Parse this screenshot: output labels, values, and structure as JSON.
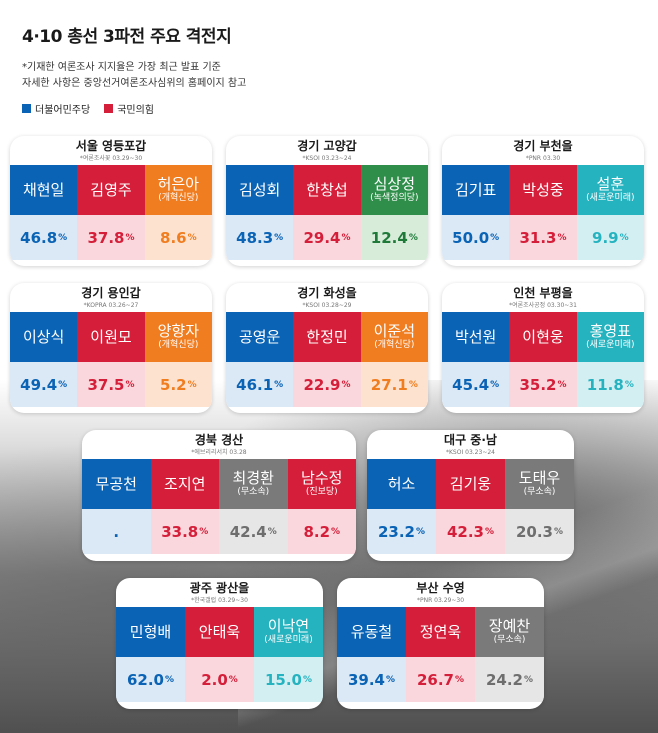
{
  "title": "4·10 총선 3파전 주요 격전지",
  "notes": [
    "*기재한 여론조사 지지율은 가장 최근 발표 기준",
    "자세한 사항은 중앙선거여론조사심위의 홈페이지 참고"
  ],
  "legend": [
    {
      "label": "더불어민주당",
      "color": "#0a63b4"
    },
    {
      "label": "국민의힘",
      "color": "#d51f3a"
    }
  ],
  "colors": {
    "dem_name": "#0a63b4",
    "dem_val": "#dbe9f7",
    "dem_text": "#0a63b4",
    "ppp_name": "#d51f3a",
    "ppp_val": "#fad7dc",
    "ppp_text": "#d51f3a",
    "reform_name": "#f07d20",
    "reform_val": "#fde3cf",
    "reform_text": "#f07d20",
    "green_name": "#2f8f4a",
    "green_val": "#d7ecd9",
    "green_text": "#1f7a3a",
    "newfuture_name": "#26b3c0",
    "newfuture_val": "#d3eff2",
    "newfuture_text": "#26b3c0",
    "prog_name": "#d51f3a",
    "prog_val": "#fad7dc",
    "prog_text": "#d51f3a",
    "ind_name": "#7a7a7a",
    "ind_val": "#e6e6e6",
    "ind_text": "#6e6e6e"
  },
  "districts": [
    {
      "region": "서울 영등포갑",
      "source": "*여론조사꽃 03.29~30",
      "candidates": [
        {
          "name": "채현일",
          "party": "",
          "value": "46.8",
          "unit": "%",
          "type": "dem"
        },
        {
          "name": "김영주",
          "party": "",
          "value": "37.8",
          "unit": "%",
          "type": "ppp"
        },
        {
          "name": "허은아",
          "party": "(개혁신당)",
          "value": "8.6",
          "unit": "%",
          "type": "reform"
        }
      ]
    },
    {
      "region": "경기 고양갑",
      "source": "*KSOI 03.23~24",
      "candidates": [
        {
          "name": "김성회",
          "party": "",
          "value": "48.3",
          "unit": "%",
          "type": "dem"
        },
        {
          "name": "한창섭",
          "party": "",
          "value": "29.4",
          "unit": "%",
          "type": "ppp"
        },
        {
          "name": "심상정",
          "party": "(녹색정의당)",
          "value": "12.4",
          "unit": "%",
          "type": "green"
        }
      ]
    },
    {
      "region": "경기 부천을",
      "source": "*PNR 03.30",
      "candidates": [
        {
          "name": "김기표",
          "party": "",
          "value": "50.0",
          "unit": "%",
          "type": "dem"
        },
        {
          "name": "박성중",
          "party": "",
          "value": "31.3",
          "unit": "%",
          "type": "ppp"
        },
        {
          "name": "설훈",
          "party": "(새로운미래)",
          "value": "9.9",
          "unit": "%",
          "type": "newfuture"
        }
      ]
    },
    {
      "region": "경기 용인갑",
      "source": "*KOPRA 03.26~27",
      "candidates": [
        {
          "name": "이상식",
          "party": "",
          "value": "49.4",
          "unit": "%",
          "type": "dem"
        },
        {
          "name": "이원모",
          "party": "",
          "value": "37.5",
          "unit": "%",
          "type": "ppp"
        },
        {
          "name": "양향자",
          "party": "(개혁신당)",
          "value": "5.2",
          "unit": "%",
          "type": "reform"
        }
      ]
    },
    {
      "region": "경기 화성을",
      "source": "*KSOI 03.28~29",
      "candidates": [
        {
          "name": "공영운",
          "party": "",
          "value": "46.1",
          "unit": "%",
          "type": "dem"
        },
        {
          "name": "한정민",
          "party": "",
          "value": "22.9",
          "unit": "%",
          "type": "ppp"
        },
        {
          "name": "이준석",
          "party": "(개혁신당)",
          "value": "27.1",
          "unit": "%",
          "type": "reform"
        }
      ]
    },
    {
      "region": "인천 부평을",
      "source": "*여론조사공정 03.30~31",
      "candidates": [
        {
          "name": "박선원",
          "party": "",
          "value": "45.4",
          "unit": "%",
          "type": "dem"
        },
        {
          "name": "이현웅",
          "party": "",
          "value": "35.2",
          "unit": "%",
          "type": "ppp"
        },
        {
          "name": "홍영표",
          "party": "(새로운미래)",
          "value": "11.8",
          "unit": "%",
          "type": "newfuture"
        }
      ]
    },
    {
      "region": "경북 경산",
      "source": "*에브리리서치 03.28",
      "candidates": [
        {
          "name": "무공천",
          "party": "",
          "value": ".",
          "unit": "",
          "type": "dem"
        },
        {
          "name": "조지연",
          "party": "",
          "value": "33.8",
          "unit": "%",
          "type": "ppp"
        },
        {
          "name": "최경환",
          "party": "(무소속)",
          "value": "42.4",
          "unit": "%",
          "type": "ind"
        },
        {
          "name": "남수정",
          "party": "(진보당)",
          "value": "8.2",
          "unit": "%",
          "type": "prog"
        }
      ]
    },
    {
      "region": "대구 중·남",
      "source": "*KSOI 03.23~24",
      "candidates": [
        {
          "name": "허소",
          "party": "",
          "value": "23.2",
          "unit": "%",
          "type": "dem"
        },
        {
          "name": "김기웅",
          "party": "",
          "value": "42.3",
          "unit": "%",
          "type": "ppp"
        },
        {
          "name": "도태우",
          "party": "(무소속)",
          "value": "20.3",
          "unit": "%",
          "type": "ind"
        }
      ]
    },
    {
      "region": "광주 광산을",
      "source": "*한국갤럽 03.29~30",
      "candidates": [
        {
          "name": "민형배",
          "party": "",
          "value": "62.0",
          "unit": "%",
          "type": "dem"
        },
        {
          "name": "안태욱",
          "party": "",
          "value": "2.0",
          "unit": "%",
          "type": "ppp"
        },
        {
          "name": "이낙연",
          "party": "(새로운미래)",
          "value": "15.0",
          "unit": "%",
          "type": "newfuture"
        }
      ]
    },
    {
      "region": "부산 수영",
      "source": "*PNR 03.29~30",
      "candidates": [
        {
          "name": "유동철",
          "party": "",
          "value": "39.4",
          "unit": "%",
          "type": "dem"
        },
        {
          "name": "정연욱",
          "party": "",
          "value": "26.7",
          "unit": "%",
          "type": "ppp"
        },
        {
          "name": "장예찬",
          "party": "(무소속)",
          "value": "24.2",
          "unit": "%",
          "type": "ind"
        }
      ]
    }
  ]
}
